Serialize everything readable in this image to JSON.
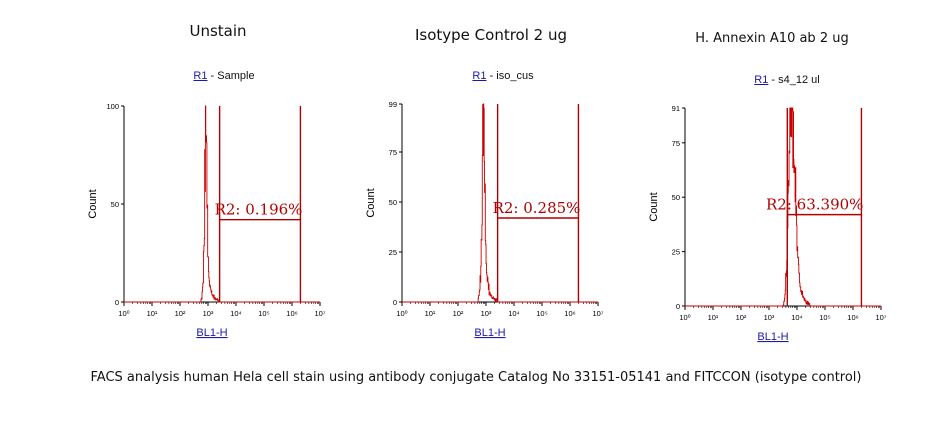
{
  "caption": "FACS analysis human Hela cell stain using antibody conjugate Catalog No 33151-05141 and FITCCON (isotype control)",
  "colors": {
    "histogram": "#cc0000",
    "gate": "#b00000",
    "gate_label": "#b00000",
    "axis": "#000000",
    "link": "#1a1aa6"
  },
  "chart_data": [
    {
      "type": "area",
      "title": "Unstain",
      "gate_name": "R1",
      "gate_sample": " - Sample",
      "xlabel": "BL1-H",
      "ylabel": "Count",
      "x_scale": "log",
      "xlim": [
        1,
        10000000
      ],
      "x_tick_labels": [
        "10⁰",
        "10¹",
        "10²",
        "10³",
        "10⁴",
        "10⁵",
        "10⁶",
        "10⁷"
      ],
      "ylim": [
        0,
        100
      ],
      "y_ticks": [
        0,
        50,
        100
      ],
      "gate": {
        "label": "R2: 0.196%",
        "from": 2600,
        "to": 2000000,
        "level": 42
      },
      "histogram": {
        "peak_x": 800,
        "peak_y": 100,
        "sigma_decades": 0.11,
        "profile": [
          [
            1,
            0
          ],
          [
            560,
            0
          ],
          [
            620,
            4
          ],
          [
            680,
            13
          ],
          [
            720,
            30
          ],
          [
            760,
            58
          ],
          [
            790,
            86
          ],
          [
            815,
            100
          ],
          [
            850,
            97
          ],
          [
            880,
            80
          ],
          [
            920,
            56
          ],
          [
            960,
            36
          ],
          [
            1000,
            24
          ],
          [
            1080,
            13
          ],
          [
            1200,
            7
          ],
          [
            1400,
            4
          ],
          [
            1700,
            2
          ],
          [
            2200,
            1
          ],
          [
            2600,
            0
          ],
          [
            10000000,
            0
          ]
        ]
      }
    },
    {
      "type": "area",
      "title": "Isotype Control 2 ug",
      "gate_name": "R1",
      "gate_sample": " - iso_cus",
      "xlabel": "BL1-H",
      "ylabel": "Count",
      "x_scale": "log",
      "xlim": [
        1,
        10000000
      ],
      "x_tick_labels": [
        "10⁰",
        "10¹",
        "10²",
        "10³",
        "10⁴",
        "10⁵",
        "10⁶",
        "10⁷"
      ],
      "ylim": [
        0,
        99
      ],
      "y_ticks": [
        0,
        25,
        50,
        75,
        99
      ],
      "gate": {
        "label": "R2: 0.285%",
        "from": 2600,
        "to": 2000000,
        "level": 42
      },
      "histogram": {
        "peak_x": 780,
        "peak_y": 99,
        "profile": [
          [
            1,
            0
          ],
          [
            520,
            0
          ],
          [
            580,
            4
          ],
          [
            640,
            14
          ],
          [
            690,
            32
          ],
          [
            730,
            60
          ],
          [
            760,
            86
          ],
          [
            790,
            99
          ],
          [
            830,
            96
          ],
          [
            870,
            78
          ],
          [
            910,
            55
          ],
          [
            950,
            36
          ],
          [
            1000,
            24
          ],
          [
            1080,
            14
          ],
          [
            1200,
            8
          ],
          [
            1400,
            4
          ],
          [
            1700,
            2
          ],
          [
            2200,
            1
          ],
          [
            2600,
            0
          ],
          [
            10000000,
            0
          ]
        ]
      }
    },
    {
      "type": "area",
      "title": "H. Annexin A10 ab 2 ug",
      "gate_name": "R1",
      "gate_sample": " - s4_12 ul",
      "xlabel": "BL1-H",
      "ylabel": "Count",
      "x_scale": "log",
      "xlim": [
        1,
        10000000
      ],
      "x_tick_labels": [
        "10⁰",
        "10¹",
        "10²",
        "10³",
        "10⁴",
        "10⁵",
        "10⁶",
        "10⁷"
      ],
      "ylim": [
        0,
        91
      ],
      "y_ticks": [
        0,
        25,
        50,
        75,
        91
      ],
      "gate": {
        "label": "R2: 63.390%",
        "from": 4500,
        "to": 2000000,
        "level": 42
      },
      "histogram": {
        "peak_x": 6500,
        "peak_y": 91,
        "profile": [
          [
            1,
            0
          ],
          [
            3200,
            0
          ],
          [
            3600,
            4
          ],
          [
            4100,
            14
          ],
          [
            4600,
            36
          ],
          [
            5100,
            64
          ],
          [
            5700,
            86
          ],
          [
            6400,
            91
          ],
          [
            7100,
            88
          ],
          [
            7900,
            72
          ],
          [
            8800,
            52
          ],
          [
            9800,
            34
          ],
          [
            11000,
            22
          ],
          [
            12500,
            13
          ],
          [
            14500,
            7
          ],
          [
            17000,
            4
          ],
          [
            20000,
            2
          ],
          [
            25000,
            1
          ],
          [
            30000,
            0
          ],
          [
            10000000,
            0
          ]
        ]
      }
    }
  ]
}
